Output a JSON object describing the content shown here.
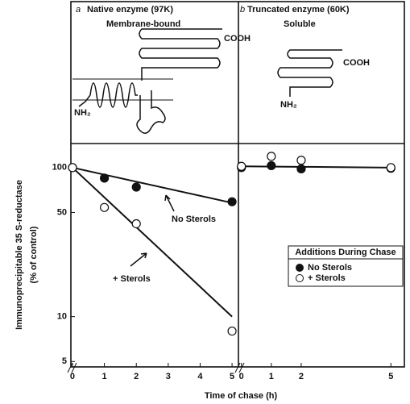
{
  "figure": {
    "ylabel": "Immunoprecipitable 35 S-reductase",
    "ylabel2": "(% of control)",
    "xlabel": "Time of chase (h)"
  },
  "chart_data": [
    {
      "type": "scatter",
      "panel_label": "a",
      "title": "Native enzyme (97K)",
      "subtitle": "Membrane-bound",
      "diagram_labels": [
        "COOH",
        "NH₂"
      ],
      "ylog": true,
      "ylim": [
        4.6,
        145
      ],
      "yticks": [
        5,
        10,
        50,
        100
      ],
      "xlim": [
        -0.05,
        5.2
      ],
      "xticks": [
        0,
        1,
        2,
        3,
        4,
        5
      ],
      "series": [
        {
          "name": "No Sterols",
          "marker": "filled",
          "x": [
            0,
            1,
            2,
            5
          ],
          "values": [
            100,
            85,
            74,
            59
          ],
          "fit_x": [
            0,
            5
          ],
          "fit_values": [
            100,
            58
          ]
        },
        {
          "name": "+ Sterols",
          "marker": "open",
          "x": [
            0,
            1,
            2,
            5
          ],
          "values": [
            100,
            54,
            42,
            8
          ],
          "fit_x": [
            0,
            5
          ],
          "fit_values": [
            100,
            10
          ]
        }
      ]
    },
    {
      "type": "scatter",
      "panel_label": "b",
      "title": "Truncated enzyme (60K)",
      "subtitle": "Soluble",
      "diagram_labels": [
        "COOH",
        "NH₂"
      ],
      "ylog": true,
      "ylim": [
        4.6,
        145
      ],
      "xlim": [
        -0.1,
        5.45
      ],
      "xticks": [
        0,
        1,
        2,
        5
      ],
      "legend": "right",
      "legend_title": "Additions During Chase",
      "series": [
        {
          "name": "No Sterols",
          "marker": "filled",
          "x": [
            0,
            1,
            2,
            5
          ],
          "values": [
            100,
            103,
            98,
            99
          ],
          "fit_x": [
            0,
            5
          ],
          "fit_values": [
            102,
            100
          ]
        },
        {
          "name": "+ Sterols",
          "marker": "open",
          "x": [
            0,
            1,
            2,
            5
          ],
          "values": [
            102,
            119,
            112,
            100
          ]
        }
      ]
    }
  ]
}
